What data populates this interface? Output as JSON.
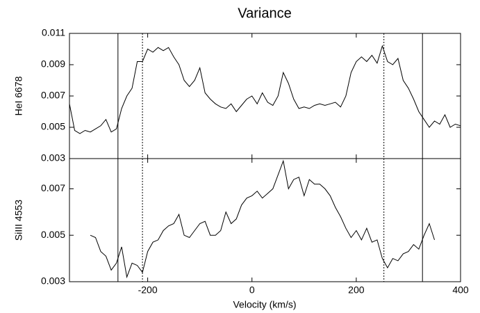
{
  "chart_data": {
    "type": "line",
    "title": "Variance",
    "xlabel": "Velocity (km/s)",
    "xlim": [
      -350,
      400
    ],
    "xticks": [
      -200,
      0,
      200,
      400
    ],
    "vlines": [
      {
        "value": -257,
        "style": "solid"
      },
      {
        "value": -210,
        "style": "dotted"
      },
      {
        "value": 253,
        "style": "dotted"
      },
      {
        "value": 327,
        "style": "solid"
      }
    ],
    "panels": [
      {
        "ylabel": "HeI 6678",
        "ylim": [
          0.003,
          0.011
        ],
        "yticks": [
          0.003,
          0.005,
          0.007,
          0.009,
          0.011
        ],
        "color": "#000000",
        "x": [
          -350,
          -340,
          -330,
          -320,
          -310,
          -300,
          -290,
          -280,
          -270,
          -260,
          -250,
          -240,
          -230,
          -220,
          -210,
          -200,
          -190,
          -180,
          -170,
          -160,
          -150,
          -140,
          -130,
          -120,
          -110,
          -100,
          -90,
          -80,
          -70,
          -60,
          -50,
          -40,
          -30,
          -20,
          -10,
          0,
          10,
          20,
          30,
          40,
          50,
          60,
          70,
          80,
          90,
          100,
          110,
          120,
          130,
          140,
          150,
          160,
          170,
          180,
          190,
          200,
          210,
          220,
          230,
          240,
          250,
          260,
          270,
          280,
          290,
          300,
          310,
          320,
          330,
          340,
          350,
          360,
          370,
          380,
          390,
          400
        ],
        "values": [
          0.0065,
          0.0048,
          0.0046,
          0.0048,
          0.0047,
          0.0049,
          0.0051,
          0.0055,
          0.0047,
          0.0049,
          0.0062,
          0.007,
          0.0075,
          0.0092,
          0.0092,
          0.01,
          0.0098,
          0.0101,
          0.0099,
          0.0101,
          0.0095,
          0.009,
          0.008,
          0.0076,
          0.008,
          0.0088,
          0.0072,
          0.0068,
          0.0065,
          0.0063,
          0.0062,
          0.0065,
          0.006,
          0.0064,
          0.0068,
          0.007,
          0.0065,
          0.0072,
          0.0066,
          0.0064,
          0.007,
          0.0085,
          0.0078,
          0.0068,
          0.0062,
          0.0063,
          0.0062,
          0.0064,
          0.0065,
          0.0064,
          0.0065,
          0.0066,
          0.0063,
          0.007,
          0.0085,
          0.0092,
          0.0095,
          0.0092,
          0.0096,
          0.0091,
          0.0102,
          0.0092,
          0.009,
          0.0094,
          0.008,
          0.0075,
          0.0068,
          0.006,
          0.0055,
          0.005,
          0.0054,
          0.0052,
          0.0058,
          0.005,
          0.0052,
          0.0051
        ]
      },
      {
        "ylabel": "SiIII 4553",
        "ylim": [
          0.003,
          0.0083
        ],
        "yticks": [
          0.003,
          0.005,
          0.007
        ],
        "color": "#000000",
        "x": [
          -310,
          -300,
          -290,
          -280,
          -270,
          -260,
          -250,
          -240,
          -230,
          -220,
          -210,
          -200,
          -190,
          -180,
          -170,
          -160,
          -150,
          -140,
          -130,
          -120,
          -110,
          -100,
          -90,
          -80,
          -70,
          -60,
          -50,
          -40,
          -30,
          -20,
          -10,
          0,
          10,
          20,
          30,
          40,
          50,
          60,
          70,
          80,
          90,
          100,
          110,
          120,
          130,
          140,
          150,
          160,
          170,
          180,
          190,
          200,
          210,
          220,
          230,
          240,
          250,
          260,
          270,
          280,
          290,
          300,
          310,
          320,
          330,
          340,
          350
        ],
        "values": [
          0.005,
          0.0049,
          0.0043,
          0.0041,
          0.0035,
          0.0038,
          0.0045,
          0.0032,
          0.0038,
          0.0037,
          0.0034,
          0.0043,
          0.0047,
          0.0048,
          0.0052,
          0.0054,
          0.0055,
          0.0059,
          0.005,
          0.0049,
          0.0052,
          0.0055,
          0.0056,
          0.005,
          0.005,
          0.0052,
          0.006,
          0.0055,
          0.0057,
          0.0063,
          0.0066,
          0.0067,
          0.0069,
          0.0066,
          0.0068,
          0.007,
          0.0076,
          0.0082,
          0.007,
          0.0074,
          0.0075,
          0.0067,
          0.0074,
          0.0072,
          0.0072,
          0.007,
          0.0067,
          0.0062,
          0.0058,
          0.0053,
          0.0049,
          0.0052,
          0.0048,
          0.0053,
          0.0047,
          0.0048,
          0.004,
          0.0036,
          0.004,
          0.0039,
          0.0042,
          0.0043,
          0.0046,
          0.0044,
          0.005,
          0.0055,
          0.0048
        ]
      }
    ]
  }
}
